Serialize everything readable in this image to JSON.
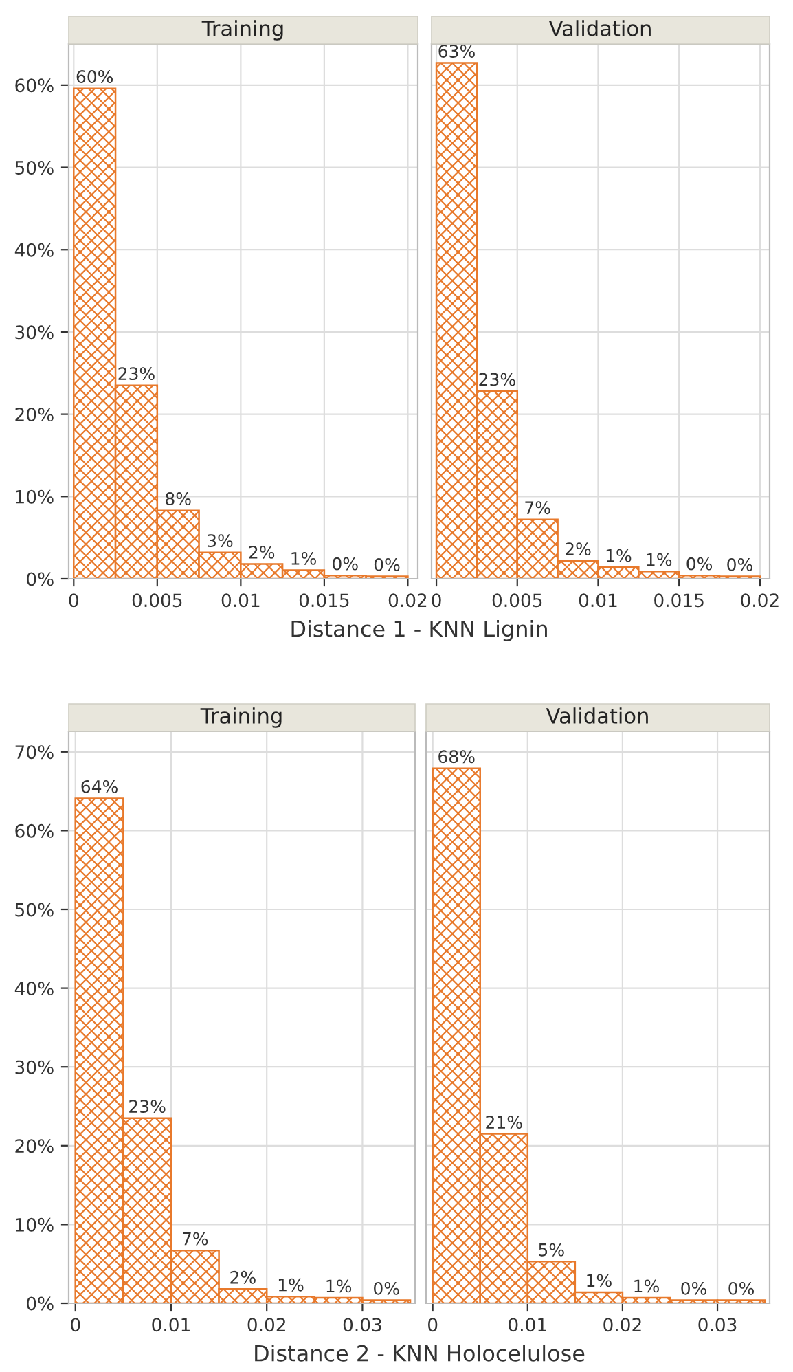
{
  "chart_data": [
    {
      "type": "histogram",
      "title": "Training",
      "xlabel": "Distance 1 - KNN Lignin",
      "bins": [
        0,
        0.0025,
        0.005,
        0.0075,
        0.01,
        0.0125,
        0.015,
        0.0175,
        0.02
      ],
      "values": [
        59.6,
        23.5,
        8.3,
        3.2,
        1.8,
        1.05,
        0.4,
        0.3
      ],
      "value_labels": [
        "60%",
        "23%",
        "8%",
        "3%",
        "2%",
        "1%",
        "0%",
        "0%"
      ],
      "color": "#e8792b",
      "xlim": [
        -0.0003,
        0.0206
      ],
      "xticks": [
        0,
        0.005,
        0.01,
        0.015,
        0.02
      ],
      "ylim": [
        0,
        65
      ],
      "yticks": [
        {
          "value": 0,
          "label": "0%"
        },
        {
          "value": 10,
          "label": "10%"
        },
        {
          "value": 20,
          "label": "20%"
        },
        {
          "value": 30,
          "label": "30%"
        },
        {
          "value": 40,
          "label": "40%"
        },
        {
          "value": 50,
          "label": "50%"
        },
        {
          "value": 60,
          "label": "60%"
        }
      ],
      "grid": true
    },
    {
      "type": "histogram",
      "title": "Validation",
      "bins": [
        0,
        0.0025,
        0.005,
        0.0075,
        0.01,
        0.0125,
        0.015,
        0.0175,
        0.02
      ],
      "values": [
        62.7,
        22.8,
        7.2,
        2.2,
        1.4,
        0.9,
        0.4,
        0.3
      ],
      "value_labels": [
        "63%",
        "23%",
        "7%",
        "2%",
        "1%",
        "1%",
        "0%",
        "0%"
      ],
      "color": "#e8792b",
      "xlim": [
        -0.0003,
        0.0206
      ],
      "xticks": [
        0,
        0.005,
        0.01,
        0.015,
        0.02
      ],
      "ylim": [
        0,
        65
      ],
      "yticks": [
        {
          "value": 0,
          "label": null
        },
        {
          "value": 10,
          "label": null
        },
        {
          "value": 20,
          "label": null
        },
        {
          "value": 30,
          "label": null
        },
        {
          "value": 40,
          "label": null
        },
        {
          "value": 50,
          "label": null
        },
        {
          "value": 60,
          "label": null
        }
      ],
      "grid": true,
      "tick_labels": "x"
    },
    {
      "type": "histogram",
      "title": "Training",
      "xlabel": "Distance 2 - KNN Holocelulose",
      "bins": [
        0,
        0.005,
        0.01,
        0.015,
        0.02,
        0.025,
        0.03,
        0.035
      ],
      "values": [
        64.1,
        23.5,
        6.7,
        1.8,
        0.85,
        0.7,
        0.4
      ],
      "value_labels": [
        "64%",
        "23%",
        "7%",
        "2%",
        "1%",
        "1%",
        "0%"
      ],
      "color": "#e8792b",
      "xlim": [
        -0.0007,
        0.0355
      ],
      "xticks": [
        0,
        0.01,
        0.02,
        0.03
      ],
      "ylim": [
        0,
        72.6
      ],
      "yticks": [
        {
          "value": 0,
          "label": "0%"
        },
        {
          "value": 10,
          "label": "10%"
        },
        {
          "value": 20,
          "label": "20%"
        },
        {
          "value": 30,
          "label": "30%"
        },
        {
          "value": 40,
          "label": "40%"
        },
        {
          "value": 50,
          "label": "50%"
        },
        {
          "value": 60,
          "label": "60%"
        },
        {
          "value": 70,
          "label": "70%"
        }
      ],
      "grid": true
    },
    {
      "type": "histogram",
      "title": "Validation",
      "bins": [
        0,
        0.005,
        0.01,
        0.015,
        0.02,
        0.025,
        0.03,
        0.035
      ],
      "values": [
        67.9,
        21.5,
        5.3,
        1.4,
        0.7,
        0.4,
        0.4
      ],
      "value_labels": [
        "68%",
        "21%",
        "5%",
        "1%",
        "1%",
        "0%",
        "0%"
      ],
      "color": "#e8792b",
      "xlim": [
        -0.0007,
        0.0355
      ],
      "xticks": [
        0,
        0.01,
        0.02,
        0.03
      ],
      "ylim": [
        0,
        72.6
      ],
      "yticks": [
        {
          "value": 0,
          "label": null
        },
        {
          "value": 10,
          "label": null
        },
        {
          "value": 20,
          "label": null
        },
        {
          "value": 30,
          "label": null
        },
        {
          "value": 40,
          "label": null
        },
        {
          "value": 50,
          "label": null
        },
        {
          "value": 60,
          "label": null
        },
        {
          "value": 70,
          "label": null
        }
      ],
      "grid": true,
      "tick_labels": "x"
    }
  ]
}
